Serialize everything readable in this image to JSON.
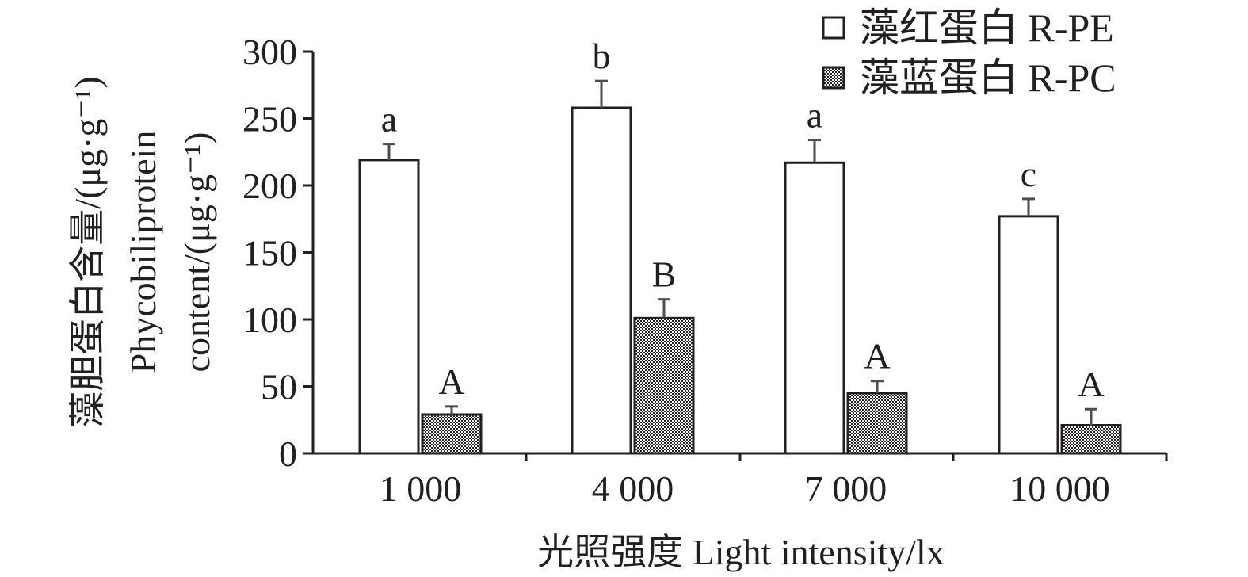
{
  "chart_data": {
    "type": "bar",
    "categories": [
      "1 000",
      "4 000",
      "7 000",
      "10 000"
    ],
    "series": [
      {
        "name": "藻红蛋白 R-PE",
        "values": [
          219,
          258,
          217,
          177
        ],
        "errors": [
          12,
          20,
          17,
          13
        ],
        "letters": [
          "a",
          "b",
          "a",
          "c"
        ],
        "fill": "white"
      },
      {
        "name": "藻蓝蛋白 R-PC",
        "values": [
          29,
          101,
          45,
          21
        ],
        "errors": [
          6,
          14,
          9,
          12
        ],
        "letters": [
          "A",
          "B",
          "A",
          "A"
        ],
        "fill": "checker"
      }
    ],
    "xlabel": "光照强度 Light intensity/lx",
    "ylabel_line1": "藻胆蛋白含量/(μg·g⁻¹)",
    "ylabel_line2": "Phycobiliprotein",
    "ylabel_line3": "content/(μg·g⁻¹)",
    "ylim": [
      0,
      300
    ],
    "yticks": [
      0,
      50,
      100,
      150,
      200,
      250,
      300
    ],
    "legend_position": "top-right",
    "grid": false,
    "colors": {
      "ink": "#231f20",
      "bar_fill": "#ffffff",
      "error_bar": "#4d4d4d"
    }
  }
}
